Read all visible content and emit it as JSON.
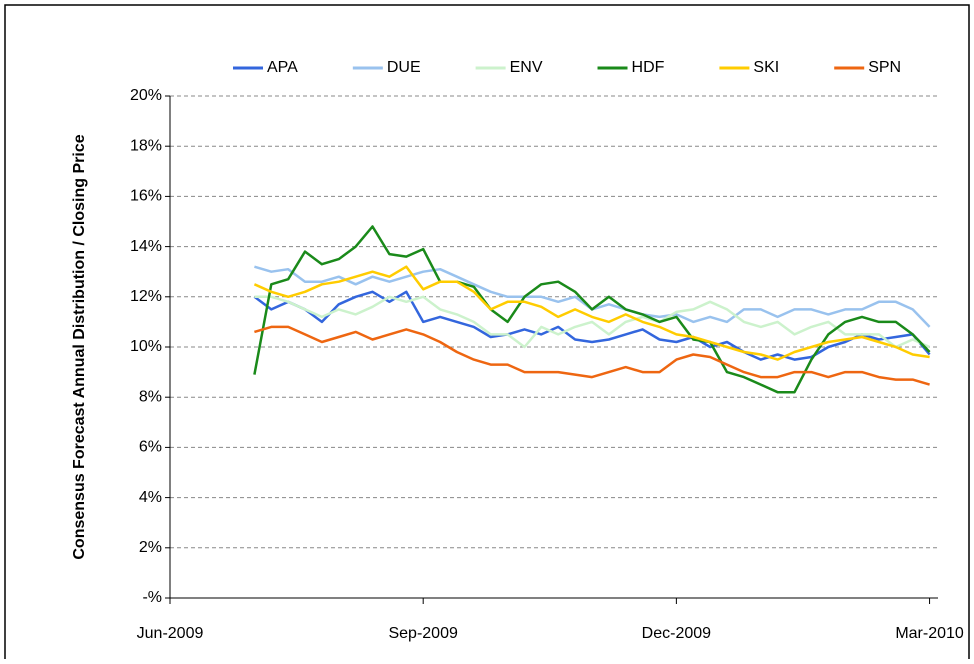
{
  "chart_data": {
    "type": "line",
    "y_label": "Consensus Forecast Annual Distribution / Closing Price",
    "x": [
      1.0,
      1.2,
      1.4,
      1.6,
      1.8,
      2.0,
      2.2,
      2.4,
      2.6,
      2.8,
      3.0,
      3.2,
      3.4,
      3.6,
      3.8,
      4.0,
      4.2,
      4.4,
      4.6,
      4.8,
      5.0,
      5.2,
      5.4,
      5.6,
      5.8,
      6.0,
      6.2,
      6.4,
      6.6,
      6.8,
      7.0,
      7.2,
      7.4,
      7.6,
      7.8,
      8.0,
      8.2,
      8.4,
      8.6,
      8.8,
      9.0
    ],
    "series": [
      {
        "name": "APA",
        "color": "#3366dd",
        "values": [
          12,
          11.5,
          11.8,
          11.5,
          11,
          11.7,
          12,
          12.2,
          11.8,
          12.2,
          11,
          11.2,
          11,
          10.8,
          10.4,
          10.5,
          10.7,
          10.5,
          10.8,
          10.3,
          10.2,
          10.3,
          10.5,
          10.7,
          10.3,
          10.2,
          10.4,
          10.0,
          10.2,
          9.8,
          9.5,
          9.7,
          9.5,
          9.6,
          10,
          10.2,
          10.5,
          10.3,
          10.4,
          10.5,
          9.7
        ]
      },
      {
        "name": "DUE",
        "color": "#99c2ee",
        "values": [
          13.2,
          13.0,
          13.1,
          12.6,
          12.6,
          12.8,
          12.5,
          12.8,
          12.6,
          12.8,
          13.0,
          13.1,
          12.8,
          12.5,
          12.2,
          12.0,
          12.0,
          12.0,
          11.8,
          12.0,
          11.5,
          11.7,
          11.5,
          11.3,
          11.2,
          11.3,
          11.0,
          11.2,
          11.0,
          11.5,
          11.5,
          11.2,
          11.5,
          11.5,
          11.3,
          11.5,
          11.5,
          11.8,
          11.8,
          11.5,
          10.8
        ]
      },
      {
        "name": "ENV",
        "color": "#ccf2cc",
        "values": [
          12.0,
          12.0,
          11.8,
          11.5,
          11.2,
          11.5,
          11.3,
          11.6,
          12.0,
          11.8,
          12.0,
          11.5,
          11.3,
          11.0,
          10.5,
          10.5,
          10.0,
          10.8,
          10.5,
          10.8,
          11.0,
          10.5,
          11.0,
          11.2,
          11.0,
          11.4,
          11.5,
          11.8,
          11.5,
          11.0,
          10.8,
          11.0,
          10.5,
          10.8,
          11.0,
          10.5,
          10.5,
          10.5,
          10.0,
          10.3,
          10.0
        ]
      },
      {
        "name": "HDF",
        "color": "#1a8a1a",
        "values": [
          8.9,
          12.5,
          12.7,
          13.8,
          13.3,
          13.5,
          14.0,
          14.8,
          13.7,
          13.6,
          13.9,
          12.6,
          12.6,
          12.4,
          11.5,
          11.0,
          12.0,
          12.5,
          12.6,
          12.2,
          11.5,
          12.0,
          11.5,
          11.3,
          11.0,
          11.2,
          10.3,
          10.2,
          9.0,
          8.8,
          8.5,
          8.2,
          8.2,
          9.5,
          10.5,
          11.0,
          11.2,
          11.0,
          11.0,
          10.5,
          9.8
        ]
      },
      {
        "name": "SKI",
        "color": "#ffcc00",
        "values": [
          12.5,
          12.2,
          12.0,
          12.2,
          12.5,
          12.6,
          12.8,
          13.0,
          12.8,
          13.2,
          12.3,
          12.6,
          12.6,
          12.2,
          11.5,
          11.8,
          11.8,
          11.6,
          11.2,
          11.5,
          11.2,
          11.0,
          11.3,
          11.0,
          10.8,
          10.5,
          10.4,
          10.2,
          10.0,
          9.8,
          9.7,
          9.5,
          9.8,
          10.0,
          10.2,
          10.3,
          10.4,
          10.2,
          10.0,
          9.7,
          9.6
        ]
      },
      {
        "name": "SPN",
        "color": "#ee6611",
        "values": [
          10.6,
          10.8,
          10.8,
          10.5,
          10.2,
          10.4,
          10.6,
          10.3,
          10.5,
          10.7,
          10.5,
          10.2,
          9.8,
          9.5,
          9.3,
          9.3,
          9.0,
          9.0,
          9.0,
          8.9,
          8.8,
          9.0,
          9.2,
          9.0,
          9.0,
          9.5,
          9.7,
          9.6,
          9.3,
          9.0,
          8.8,
          8.8,
          9.0,
          9.0,
          8.8,
          9.0,
          9.0,
          8.8,
          8.7,
          8.7,
          8.5
        ]
      }
    ],
    "xlim": [
      0,
      9.1
    ],
    "xticks": [
      {
        "value": 0,
        "label": "Jun-2009"
      },
      {
        "value": 3,
        "label": "Sep-2009"
      },
      {
        "value": 6,
        "label": "Dec-2009"
      },
      {
        "value": 9,
        "label": "Mar-2010"
      }
    ],
    "ylim": [
      0,
      20
    ],
    "yticks": [
      {
        "value": 0,
        "label": "-%"
      },
      {
        "value": 2,
        "label": "2%"
      },
      {
        "value": 4,
        "label": "4%"
      },
      {
        "value": 6,
        "label": "6%"
      },
      {
        "value": 8,
        "label": "8%"
      },
      {
        "value": 10,
        "label": "10%"
      },
      {
        "value": 12,
        "label": "12%"
      },
      {
        "value": 14,
        "label": "14%"
      },
      {
        "value": 16,
        "label": "16%"
      },
      {
        "value": 18,
        "label": "18%"
      },
      {
        "value": 20,
        "label": "20%"
      }
    ],
    "grid": true,
    "legend": "top"
  }
}
